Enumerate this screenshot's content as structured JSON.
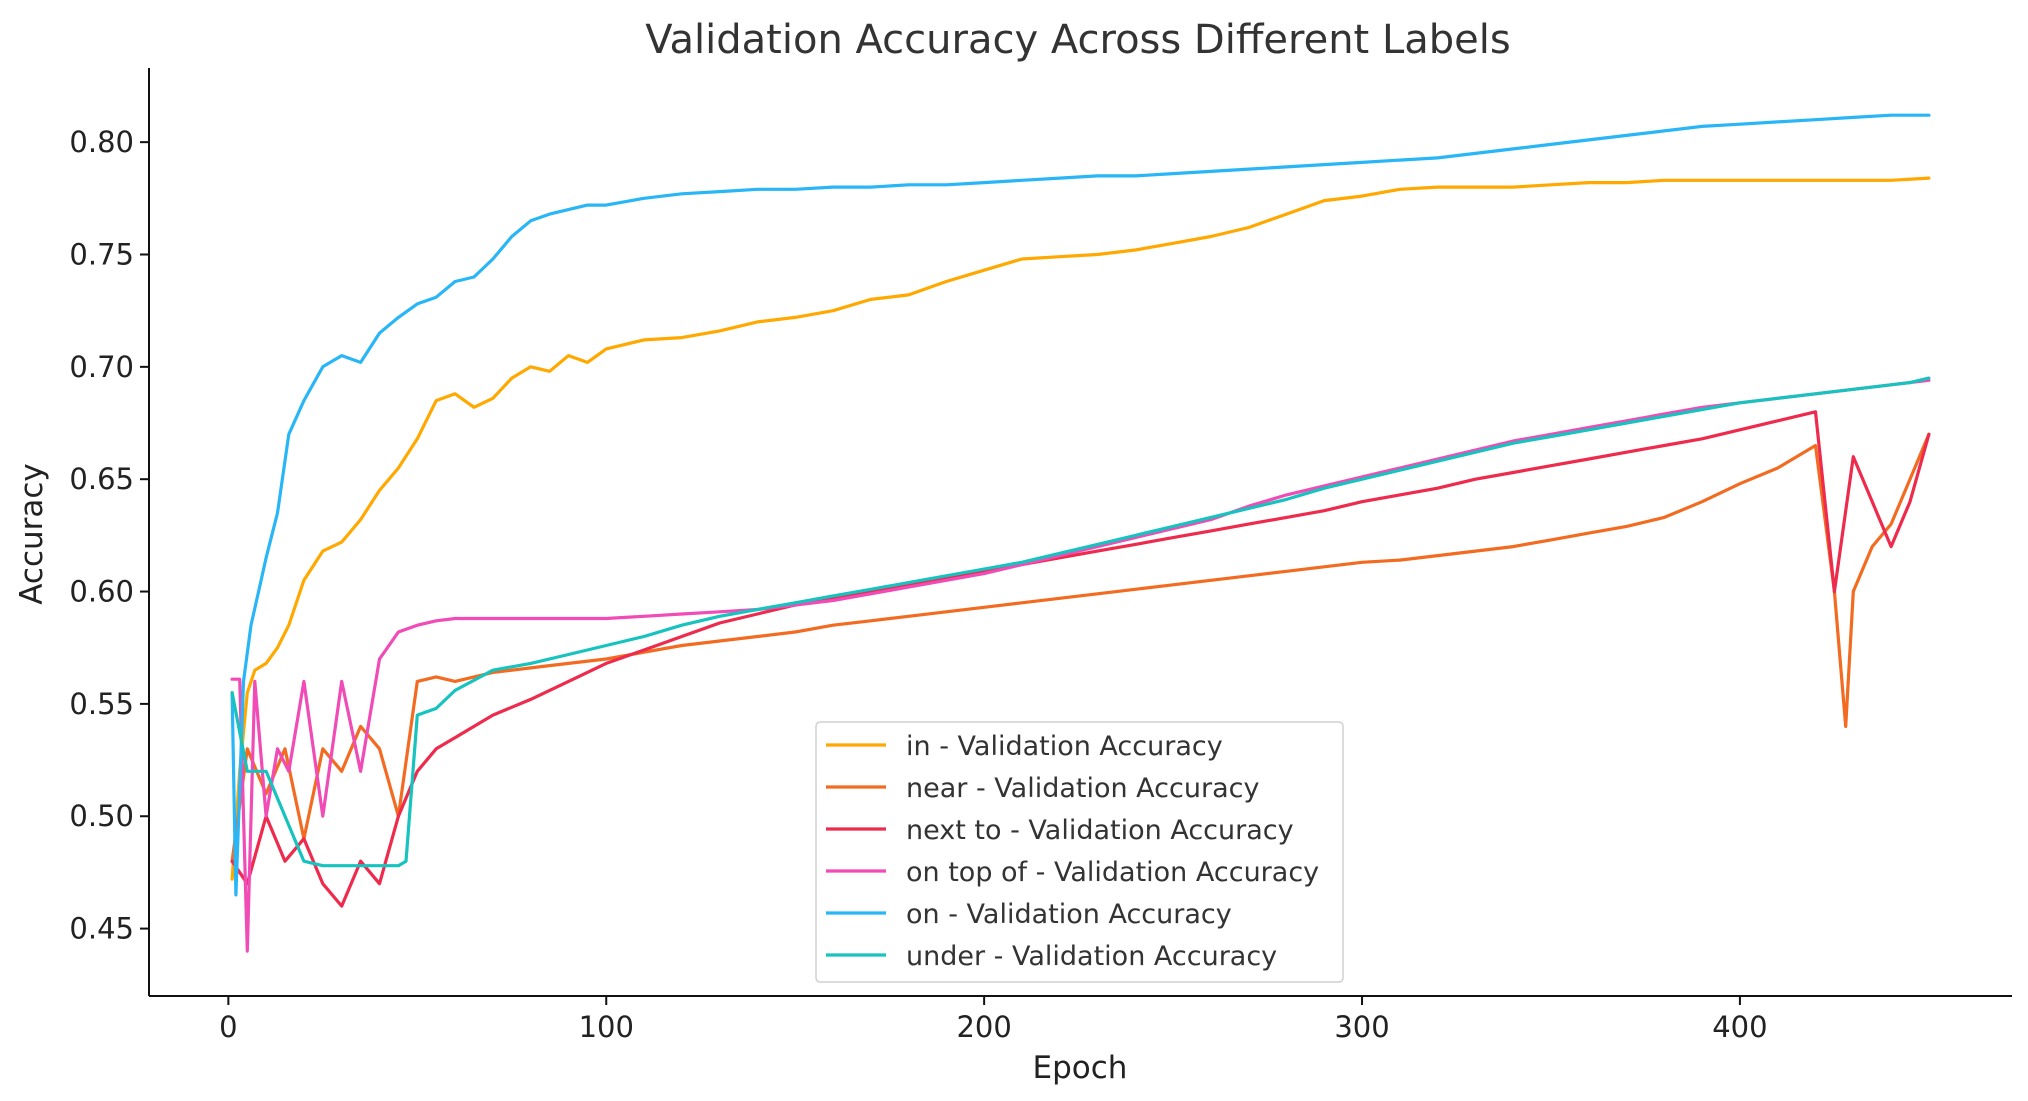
{
  "chart_data": {
    "type": "line",
    "title": "Validation Accuracy Across Different Labels",
    "xlabel": "Epoch",
    "ylabel": "Accuracy",
    "xlim": [
      -21,
      472
    ],
    "ylim": [
      0.42,
      0.833
    ],
    "xticks": [
      0,
      100,
      200,
      300,
      400
    ],
    "yticks": [
      0.45,
      0.5,
      0.55,
      0.6,
      0.65,
      0.7,
      0.75,
      0.8
    ],
    "ytick_labels": [
      "0.45",
      "0.50",
      "0.55",
      "0.60",
      "0.65",
      "0.70",
      "0.75",
      "0.80"
    ],
    "grid": false,
    "legend_position": "lower-center",
    "series": [
      {
        "name": "in - Validation Accuracy",
        "color": "#FFA800",
        "x": [
          1,
          3,
          5,
          7,
          10,
          13,
          16,
          20,
          25,
          30,
          35,
          40,
          45,
          50,
          55,
          60,
          65,
          70,
          75,
          80,
          85,
          90,
          95,
          100,
          110,
          120,
          130,
          140,
          150,
          160,
          170,
          180,
          190,
          200,
          210,
          220,
          230,
          240,
          250,
          260,
          270,
          280,
          290,
          300,
          310,
          320,
          330,
          340,
          350,
          360,
          370,
          380,
          390,
          400,
          410,
          420,
          430,
          440,
          450
        ],
        "y": [
          0.472,
          0.52,
          0.555,
          0.565,
          0.568,
          0.575,
          0.585,
          0.605,
          0.618,
          0.622,
          0.632,
          0.645,
          0.655,
          0.668,
          0.685,
          0.688,
          0.682,
          0.686,
          0.695,
          0.7,
          0.698,
          0.705,
          0.702,
          0.708,
          0.712,
          0.713,
          0.716,
          0.72,
          0.722,
          0.725,
          0.73,
          0.732,
          0.738,
          0.743,
          0.748,
          0.749,
          0.75,
          0.752,
          0.755,
          0.758,
          0.762,
          0.768,
          0.774,
          0.776,
          0.779,
          0.78,
          0.78,
          0.78,
          0.781,
          0.782,
          0.782,
          0.783,
          0.783,
          0.783,
          0.783,
          0.783,
          0.783,
          0.783,
          0.784
        ]
      },
      {
        "name": "near - Validation Accuracy",
        "color": "#F26B21",
        "x": [
          1,
          5,
          10,
          15,
          20,
          25,
          30,
          35,
          40,
          45,
          50,
          55,
          60,
          70,
          80,
          90,
          100,
          110,
          120,
          130,
          140,
          150,
          160,
          170,
          180,
          190,
          200,
          210,
          220,
          230,
          240,
          250,
          260,
          270,
          280,
          290,
          300,
          310,
          320,
          330,
          340,
          350,
          360,
          370,
          380,
          390,
          400,
          410,
          420,
          425,
          428,
          430,
          435,
          440,
          445,
          450
        ],
        "y": [
          0.48,
          0.53,
          0.51,
          0.53,
          0.49,
          0.53,
          0.52,
          0.54,
          0.53,
          0.5,
          0.56,
          0.562,
          0.56,
          0.564,
          0.566,
          0.568,
          0.57,
          0.573,
          0.576,
          0.578,
          0.58,
          0.582,
          0.585,
          0.587,
          0.589,
          0.591,
          0.593,
          0.595,
          0.597,
          0.599,
          0.601,
          0.603,
          0.605,
          0.607,
          0.609,
          0.611,
          0.613,
          0.614,
          0.616,
          0.618,
          0.62,
          0.623,
          0.626,
          0.629,
          0.633,
          0.64,
          0.648,
          0.655,
          0.665,
          0.6,
          0.54,
          0.6,
          0.62,
          0.63,
          0.65,
          0.67
        ]
      },
      {
        "name": "next to - Validation Accuracy",
        "color": "#EE2A4D",
        "x": [
          1,
          5,
          10,
          15,
          20,
          25,
          30,
          35,
          40,
          45,
          50,
          55,
          60,
          70,
          80,
          90,
          100,
          110,
          120,
          130,
          140,
          150,
          160,
          170,
          180,
          190,
          200,
          210,
          220,
          230,
          240,
          250,
          260,
          270,
          280,
          290,
          300,
          310,
          320,
          330,
          340,
          350,
          360,
          370,
          380,
          390,
          400,
          410,
          420,
          425,
          430,
          440,
          445,
          450
        ],
        "y": [
          0.48,
          0.47,
          0.5,
          0.48,
          0.49,
          0.47,
          0.46,
          0.48,
          0.47,
          0.5,
          0.52,
          0.53,
          0.535,
          0.545,
          0.552,
          0.56,
          0.568,
          0.574,
          0.58,
          0.586,
          0.59,
          0.594,
          0.597,
          0.6,
          0.603,
          0.606,
          0.609,
          0.612,
          0.615,
          0.618,
          0.621,
          0.624,
          0.627,
          0.63,
          0.633,
          0.636,
          0.64,
          0.643,
          0.646,
          0.65,
          0.653,
          0.656,
          0.659,
          0.662,
          0.665,
          0.668,
          0.672,
          0.676,
          0.68,
          0.6,
          0.66,
          0.62,
          0.64,
          0.67
        ]
      },
      {
        "name": "on top of - Validation Accuracy",
        "color": "#F14CB6",
        "x": [
          1,
          3,
          5,
          7,
          10,
          13,
          16,
          20,
          25,
          30,
          35,
          40,
          45,
          50,
          55,
          60,
          70,
          80,
          90,
          100,
          110,
          120,
          130,
          140,
          150,
          160,
          170,
          180,
          190,
          200,
          210,
          220,
          230,
          240,
          250,
          260,
          270,
          280,
          290,
          300,
          310,
          320,
          330,
          340,
          350,
          360,
          370,
          380,
          390,
          400,
          410,
          420,
          430,
          440,
          450
        ],
        "y": [
          0.561,
          0.561,
          0.44,
          0.56,
          0.5,
          0.53,
          0.52,
          0.56,
          0.5,
          0.56,
          0.52,
          0.57,
          0.582,
          0.585,
          0.587,
          0.588,
          0.588,
          0.588,
          0.588,
          0.588,
          0.589,
          0.59,
          0.591,
          0.592,
          0.594,
          0.596,
          0.599,
          0.602,
          0.605,
          0.608,
          0.612,
          0.616,
          0.62,
          0.624,
          0.628,
          0.632,
          0.638,
          0.643,
          0.647,
          0.651,
          0.655,
          0.659,
          0.663,
          0.667,
          0.67,
          0.673,
          0.676,
          0.679,
          0.682,
          0.684,
          0.686,
          0.688,
          0.69,
          0.692,
          0.694
        ]
      },
      {
        "name": "on - Validation Accuracy",
        "color": "#29B6F6",
        "x": [
          1,
          2,
          4,
          6,
          8,
          10,
          13,
          16,
          20,
          25,
          30,
          35,
          40,
          45,
          50,
          55,
          60,
          65,
          70,
          75,
          80,
          85,
          90,
          95,
          100,
          110,
          120,
          130,
          140,
          150,
          160,
          170,
          180,
          190,
          200,
          210,
          220,
          230,
          240,
          250,
          260,
          270,
          280,
          290,
          300,
          310,
          320,
          330,
          340,
          350,
          360,
          370,
          380,
          390,
          400,
          410,
          420,
          430,
          440,
          450
        ],
        "y": [
          0.555,
          0.465,
          0.56,
          0.585,
          0.6,
          0.615,
          0.635,
          0.67,
          0.685,
          0.7,
          0.705,
          0.702,
          0.715,
          0.722,
          0.728,
          0.731,
          0.738,
          0.74,
          0.748,
          0.758,
          0.765,
          0.768,
          0.77,
          0.772,
          0.772,
          0.775,
          0.777,
          0.778,
          0.779,
          0.779,
          0.78,
          0.78,
          0.781,
          0.781,
          0.782,
          0.783,
          0.784,
          0.785,
          0.785,
          0.786,
          0.787,
          0.788,
          0.789,
          0.79,
          0.791,
          0.792,
          0.793,
          0.795,
          0.797,
          0.799,
          0.801,
          0.803,
          0.805,
          0.807,
          0.808,
          0.809,
          0.81,
          0.811,
          0.812,
          0.812
        ]
      },
      {
        "name": "under - Validation Accuracy",
        "color": "#16C3BE",
        "x": [
          1,
          5,
          10,
          15,
          20,
          25,
          30,
          35,
          40,
          45,
          47,
          50,
          55,
          60,
          70,
          80,
          90,
          100,
          110,
          120,
          130,
          140,
          150,
          160,
          170,
          180,
          190,
          200,
          210,
          220,
          230,
          240,
          250,
          260,
          270,
          280,
          290,
          300,
          310,
          320,
          330,
          340,
          350,
          360,
          370,
          380,
          390,
          400,
          410,
          420,
          430,
          440,
          445,
          450
        ],
        "y": [
          0.555,
          0.52,
          0.52,
          0.5,
          0.48,
          0.478,
          0.478,
          0.478,
          0.478,
          0.478,
          0.48,
          0.545,
          0.548,
          0.556,
          0.565,
          0.568,
          0.572,
          0.576,
          0.58,
          0.585,
          0.589,
          0.592,
          0.595,
          0.598,
          0.601,
          0.604,
          0.607,
          0.61,
          0.613,
          0.617,
          0.621,
          0.625,
          0.629,
          0.633,
          0.637,
          0.641,
          0.646,
          0.65,
          0.654,
          0.658,
          0.662,
          0.666,
          0.669,
          0.672,
          0.675,
          0.678,
          0.681,
          0.684,
          0.686,
          0.688,
          0.69,
          0.692,
          0.693,
          0.695
        ]
      }
    ]
  }
}
